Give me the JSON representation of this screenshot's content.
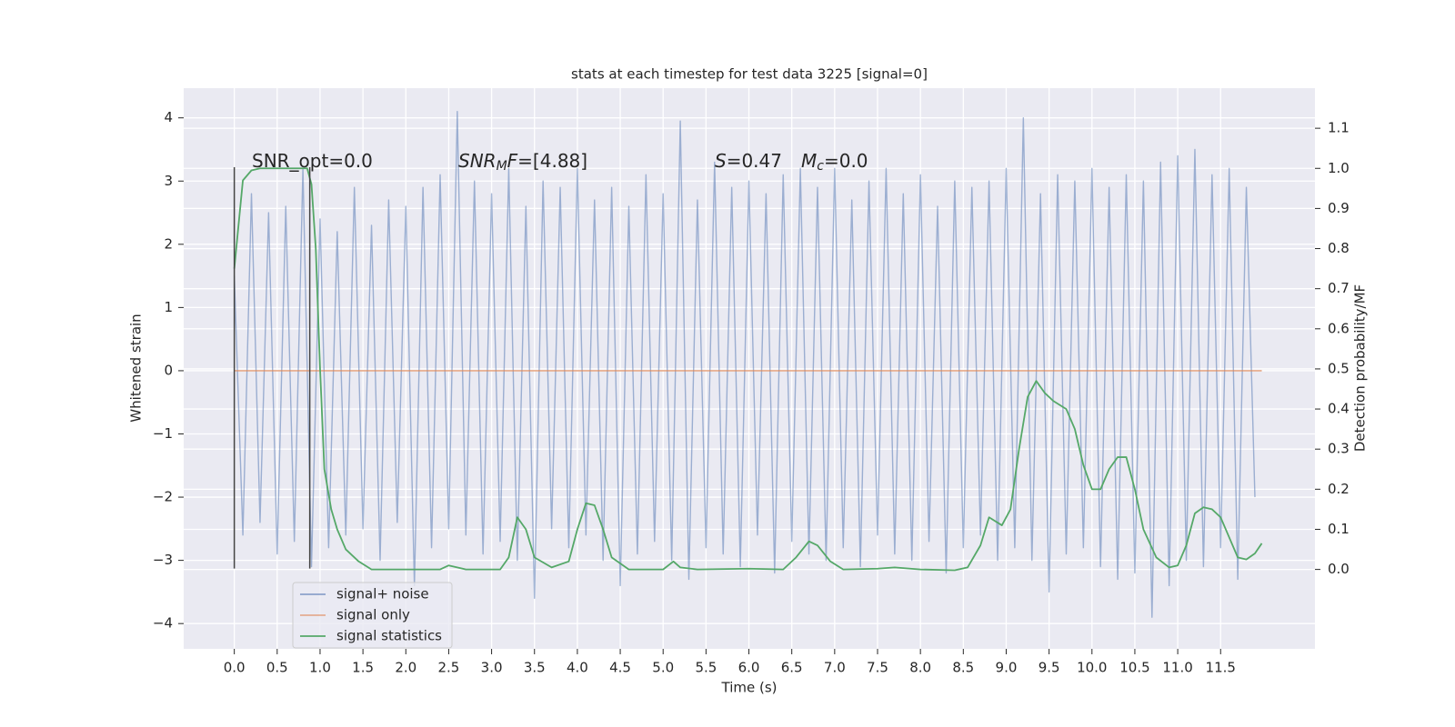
{
  "chart_data": {
    "type": "line",
    "title": "stats at each timestep for test data 3225 [signal=0]",
    "xlabel": "Time (s)",
    "ylabel": "Whitened strain",
    "y2label": "Detection probability/MF",
    "xlim": [
      -0.59,
      12.6
    ],
    "xticks": [
      {
        "value": 0,
        "label": "0.0"
      },
      0.5,
      {
        "value": 1,
        "label": "1.0"
      },
      1.5,
      {
        "value": 2,
        "label": "2.0"
      },
      2.5,
      {
        "value": 3,
        "label": "3.0"
      },
      3.5,
      {
        "value": 4,
        "label": "4.0"
      },
      4.5,
      {
        "value": 5,
        "label": "5.0"
      },
      5.5,
      {
        "value": 6,
        "label": "6.0"
      },
      6.5,
      {
        "value": 7,
        "label": "7.0"
      },
      7.5,
      {
        "value": 8,
        "label": "8.0"
      },
      8.5,
      {
        "value": 9,
        "label": "9.0"
      },
      9.5,
      {
        "value": 10,
        "label": "10.0"
      },
      10.5,
      {
        "value": 11,
        "label": "11.0"
      },
      11.5
    ],
    "ylim": [
      -4.4,
      4.47
    ],
    "yticks": [
      {
        "value": -4,
        "label": "−4"
      },
      {
        "value": -3,
        "label": "−3"
      },
      {
        "value": -2,
        "label": "−2"
      },
      {
        "value": -1,
        "label": "−1"
      },
      0,
      1,
      2,
      3,
      4
    ],
    "y2lim": [
      -0.198,
      1.2
    ],
    "y2ticks": [
      {
        "value": 0,
        "label": "0.0"
      },
      0.1,
      0.2,
      0.3,
      0.4,
      0.5,
      0.6,
      0.7,
      0.8,
      0.9,
      {
        "value": 1,
        "label": "1.0"
      },
      1.1
    ],
    "grid": true,
    "legend": "lower left",
    "vlines_x": [
      0,
      0.88
    ],
    "vlines_y": [
      -3.13,
      3.22
    ],
    "vlines_color": "#444444",
    "annotations": [
      [
        {
          "text": "SNR_opt=0.0"
        }
      ],
      [
        {
          "text": "SNR",
          "italic": true
        },
        {
          "text": "M",
          "italic": true,
          "sub": true
        },
        {
          "text": "F",
          "italic": true
        },
        {
          "text": "=[4.88]"
        }
      ],
      [
        {
          "text": "S",
          "italic": true
        },
        {
          "text": "=0.47"
        }
      ],
      [
        {
          "text": "M",
          "italic": true
        },
        {
          "text": "c",
          "italic": true,
          "sub": true
        },
        {
          "text": "=0.0"
        }
      ]
    ],
    "series": [
      {
        "name": "signal+ noise",
        "color": "#4c72b0",
        "axis": "y",
        "x": [
          0.0,
          0.1,
          0.2,
          0.3,
          0.4,
          0.5,
          0.6,
          0.7,
          0.8,
          0.9,
          1.0,
          1.1,
          1.2,
          1.3,
          1.4,
          1.5,
          1.6,
          1.7,
          1.8,
          1.9,
          2.0,
          2.1,
          2.2,
          2.3,
          2.4,
          2.5,
          2.6,
          2.7,
          2.8,
          2.9,
          3.0,
          3.1,
          3.2,
          3.3,
          3.4,
          3.5,
          3.6,
          3.7,
          3.8,
          3.9,
          4.0,
          4.1,
          4.2,
          4.3,
          4.4,
          4.5,
          4.6,
          4.7,
          4.8,
          4.9,
          5.0,
          5.1,
          5.2,
          5.3,
          5.4,
          5.5,
          5.6,
          5.7,
          5.8,
          5.9,
          6.0,
          6.1,
          6.2,
          6.3,
          6.4,
          6.5,
          6.6,
          6.7,
          6.8,
          6.9,
          7.0,
          7.1,
          7.2,
          7.3,
          7.4,
          7.5,
          7.6,
          7.7,
          7.8,
          7.9,
          8.0,
          8.1,
          8.2,
          8.3,
          8.4,
          8.5,
          8.6,
          8.7,
          8.8,
          8.9,
          9.0,
          9.1,
          9.2,
          9.3,
          9.4,
          9.5,
          9.6,
          9.7,
          9.8,
          9.9,
          10.0,
          10.1,
          10.2,
          10.3,
          10.4,
          10.5,
          10.6,
          10.7,
          10.8,
          10.9,
          11.0,
          11.1,
          11.2,
          11.3,
          11.4,
          11.5,
          11.6,
          11.7,
          11.8,
          11.9
        ],
        "values": [
          1.5,
          -2.6,
          2.8,
          -2.4,
          2.5,
          -2.9,
          2.6,
          -2.7,
          3.2,
          -3.1,
          2.4,
          -2.8,
          2.2,
          -2.6,
          2.9,
          -2.5,
          2.3,
          -3.0,
          2.7,
          -2.4,
          2.6,
          -3.4,
          2.9,
          -2.8,
          3.1,
          -2.5,
          4.1,
          -2.6,
          3.0,
          -2.9,
          2.8,
          -2.7,
          3.2,
          -3.0,
          2.6,
          -3.6,
          3.0,
          -2.5,
          2.9,
          -2.8,
          3.2,
          -2.6,
          2.7,
          -3.0,
          2.9,
          -3.4,
          2.6,
          -2.9,
          3.1,
          -2.7,
          2.8,
          -3.0,
          3.95,
          -3.3,
          2.7,
          -2.8,
          3.3,
          -2.9,
          2.9,
          -3.1,
          3.0,
          -2.6,
          2.8,
          -3.2,
          3.1,
          -2.7,
          3.2,
          -2.9,
          2.9,
          -3.0,
          3.2,
          -2.8,
          2.7,
          -3.1,
          3.0,
          -2.6,
          3.2,
          -2.9,
          2.8,
          -3.0,
          3.1,
          -2.7,
          2.6,
          -3.2,
          3.0,
          -2.8,
          2.9,
          -2.6,
          3.0,
          -3.0,
          3.2,
          -2.8,
          4.0,
          -3.0,
          2.8,
          -3.5,
          3.1,
          -2.9,
          3.0,
          -2.8,
          3.2,
          -3.1,
          2.9,
          -3.3,
          3.1,
          -3.2,
          3.0,
          -3.9,
          3.3,
          -3.4,
          3.4,
          -3.0,
          3.5,
          -3.1,
          3.1,
          -2.8,
          3.2,
          -3.3,
          2.9,
          -2.0
        ]
      },
      {
        "name": "signal only",
        "color": "#dd8452",
        "axis": "y",
        "x": [
          0.0,
          11.98
        ],
        "values": [
          0,
          0
        ]
      },
      {
        "name": "signal statistics",
        "color": "#55a868",
        "axis": "y2",
        "x": [
          0.0,
          0.1,
          0.2,
          0.3,
          0.5,
          0.7,
          0.85,
          0.9,
          0.95,
          1.0,
          1.05,
          1.13,
          1.2,
          1.3,
          1.45,
          1.6,
          2.0,
          2.4,
          2.5,
          2.7,
          3.1,
          3.2,
          3.3,
          3.4,
          3.5,
          3.7,
          3.9,
          4.0,
          4.1,
          4.2,
          4.3,
          4.4,
          4.6,
          5.0,
          5.12,
          5.2,
          5.4,
          6.0,
          6.4,
          6.55,
          6.7,
          6.8,
          6.95,
          7.1,
          7.5,
          7.7,
          8.0,
          8.4,
          8.55,
          8.7,
          8.8,
          8.95,
          9.05,
          9.15,
          9.25,
          9.35,
          9.45,
          9.55,
          9.7,
          9.8,
          9.9,
          10.0,
          10.1,
          10.2,
          10.3,
          10.4,
          10.5,
          10.6,
          10.75,
          10.9,
          11.0,
          11.1,
          11.2,
          11.3,
          11.4,
          11.5,
          11.6,
          11.7,
          11.8,
          11.9,
          11.98
        ],
        "values": [
          0.75,
          0.97,
          0.995,
          1.0,
          1.0,
          1.0,
          1.0,
          0.96,
          0.8,
          0.5,
          0.25,
          0.15,
          0.1,
          0.05,
          0.02,
          0.0,
          0.0,
          0.0,
          0.01,
          0.0,
          0.0,
          0.03,
          0.13,
          0.1,
          0.03,
          0.005,
          0.02,
          0.1,
          0.165,
          0.16,
          0.1,
          0.03,
          0.0,
          0.0,
          0.02,
          0.005,
          0.0,
          0.002,
          0.0,
          0.03,
          0.07,
          0.06,
          0.02,
          0.0,
          0.002,
          0.005,
          0.0,
          -0.002,
          0.005,
          0.06,
          0.13,
          0.11,
          0.15,
          0.3,
          0.43,
          0.47,
          0.44,
          0.42,
          0.4,
          0.35,
          0.26,
          0.2,
          0.2,
          0.25,
          0.28,
          0.28,
          0.2,
          0.1,
          0.03,
          0.005,
          0.01,
          0.06,
          0.14,
          0.155,
          0.15,
          0.13,
          0.08,
          0.03,
          0.025,
          0.04,
          0.065
        ]
      }
    ]
  }
}
